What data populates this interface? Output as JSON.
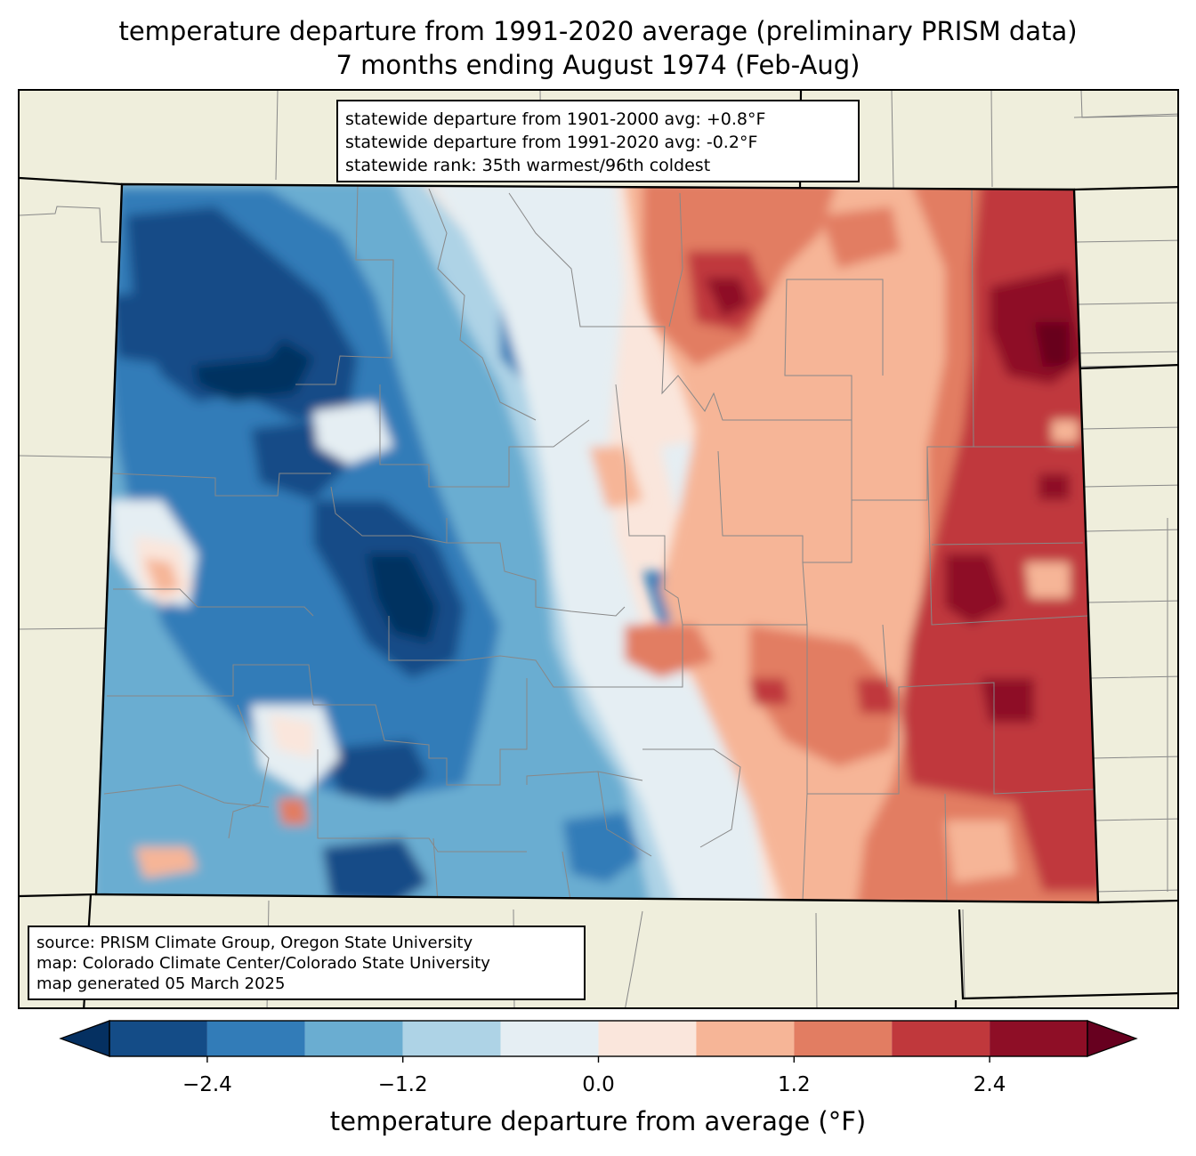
{
  "title": {
    "line1": "temperature departure from 1991-2020 average (preliminary PRISM data)",
    "line2": "7 months ending August 1974 (Feb-Aug)"
  },
  "stats": {
    "line1": "statewide departure from 1901-2000 avg: +0.8°F",
    "line2": "statewide departure from 1991-2020 avg: -0.2°F",
    "line3": "statewide rank: 35th warmest/96th coldest"
  },
  "source": {
    "line1": "source: PRISM Climate Group, Oregon State University",
    "line2": "map: Colorado Climate Center/Colorado State University",
    "line3": "map generated 05 March 2025"
  },
  "colorbar": {
    "title": "temperature departure from average (°F)",
    "ticks": [
      "−2.4",
      "−1.2",
      "0.0",
      "1.2",
      "2.4"
    ],
    "tick_values": [
      -2.4,
      -1.2,
      0.0,
      1.2,
      2.4
    ],
    "levels": [
      -3.0,
      -2.4,
      -1.8,
      -1.2,
      -0.6,
      0.0,
      0.6,
      1.2,
      1.8,
      2.4,
      3.0
    ],
    "colors": [
      "#053061",
      "#144c87",
      "#327cb8",
      "#6aadd1",
      "#aed3e6",
      "#e5eef3",
      "#fae6dc",
      "#f6b597",
      "#e27d62",
      "#c0383c",
      "#8e0e26",
      "#67001f"
    ]
  },
  "map_colors": {
    "background": "#efeedc",
    "county_lines": "#888888",
    "state_lines": "#000000"
  }
}
